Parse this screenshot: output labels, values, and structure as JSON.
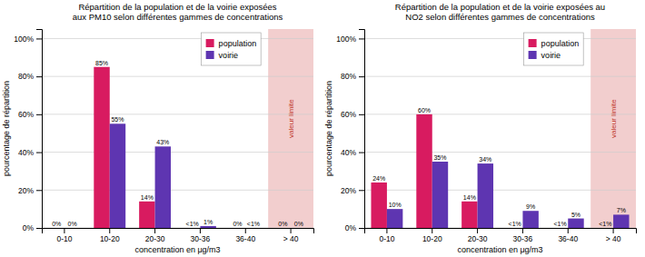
{
  "chart_data": [
    {
      "type": "bar",
      "title": "Répartition de la population et de la voirie exposées\naux PM10 selon différentes gammes de concentrations",
      "xlabel": "concentration en μg/m3",
      "ylabel": "pourcentage de répartition",
      "categories": [
        "0-10",
        "10-20",
        "20-30",
        "30-36",
        "36-40",
        "> 40"
      ],
      "series": [
        {
          "name": "population",
          "color": "#D81B60",
          "values": [
            0,
            85,
            14,
            0,
            0,
            0
          ],
          "value_labels": [
            "0%",
            "85%",
            "14%",
            "<1%",
            "0%",
            "0%"
          ]
        },
        {
          "name": "voirie",
          "color": "#5E35B1",
          "values": [
            0,
            55,
            43,
            1,
            0,
            0
          ],
          "value_labels": [
            "0%",
            "55%",
            "43%",
            "1%",
            "<1%",
            "0%"
          ]
        }
      ],
      "ylim": [
        0,
        105
      ],
      "yticks": [
        {
          "value": 0,
          "label": "0%"
        },
        {
          "value": 20,
          "label": "20%"
        },
        {
          "value": 40,
          "label": "40%"
        },
        {
          "value": 60,
          "label": "60%"
        },
        {
          "value": 80,
          "label": "80%"
        },
        {
          "value": 100,
          "label": "100%"
        }
      ],
      "grid": true,
      "legend": "upper right",
      "data_labels": true,
      "annotations": [
        {
          "text": "valeur limite",
          "category": "> 40",
          "color": "#C0392B",
          "highlight_color": "#F2CECE"
        }
      ]
    },
    {
      "type": "bar",
      "title": "Répartition de la population et de la voirie exposées au\nNO2 selon différentes gammes de concentrations",
      "xlabel": "concentration en μg/m3",
      "ylabel": "pourcentage de répartition",
      "categories": [
        "0-10",
        "10-20",
        "20-30",
        "30-36",
        "36-40",
        "> 40"
      ],
      "series": [
        {
          "name": "population",
          "color": "#D81B60",
          "values": [
            24,
            60,
            14,
            0,
            0,
            0
          ],
          "value_labels": [
            "24%",
            "60%",
            "14%",
            "<1%",
            "<1%",
            "<1%"
          ]
        },
        {
          "name": "voirie",
          "color": "#5E35B1",
          "values": [
            10,
            35,
            34,
            9,
            5,
            7
          ],
          "value_labels": [
            "10%",
            "35%",
            "34%",
            "9%",
            "5%",
            "7%"
          ]
        }
      ],
      "ylim": [
        0,
        105
      ],
      "yticks": [
        {
          "value": 0,
          "label": "0%"
        },
        {
          "value": 20,
          "label": "20%"
        },
        {
          "value": 40,
          "label": "40%"
        },
        {
          "value": 60,
          "label": "60%"
        },
        {
          "value": 80,
          "label": "80%"
        },
        {
          "value": 100,
          "label": "100%"
        }
      ],
      "grid": true,
      "legend": "upper right",
      "data_labels": true,
      "annotations": [
        {
          "text": "valeur limite",
          "category": "> 40",
          "color": "#C0392B",
          "highlight_color": "#F2CECE"
        }
      ]
    }
  ]
}
